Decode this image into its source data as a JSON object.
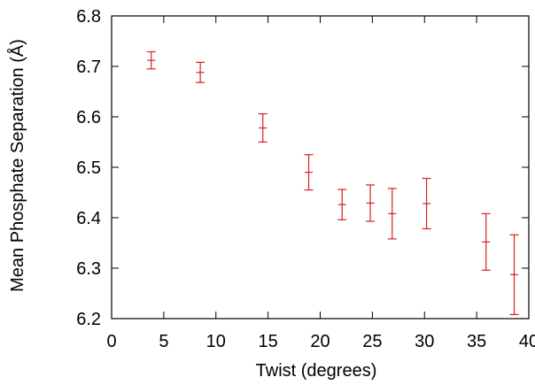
{
  "chart_data": {
    "type": "scatter",
    "title": "",
    "xlabel": "Twist (degrees)",
    "ylabel": "Mean Phosphate Separation (Å)",
    "xlim": [
      0,
      40
    ],
    "ylim": [
      6.2,
      6.8
    ],
    "xticks": [
      "0",
      "5",
      "10",
      "15",
      "20",
      "25",
      "30",
      "35",
      "40"
    ],
    "yticks": [
      "6.2",
      "6.3",
      "6.4",
      "6.5",
      "6.6",
      "6.7",
      "6.8"
    ],
    "grid": false,
    "legend": "none",
    "series": [
      {
        "color": "#d62020",
        "points": [
          {
            "x": 3.8,
            "y": 6.712,
            "err": 0.017
          },
          {
            "x": 8.5,
            "y": 6.688,
            "err": 0.02
          },
          {
            "x": 14.5,
            "y": 6.578,
            "err": 0.028
          },
          {
            "x": 18.9,
            "y": 6.49,
            "err": 0.035
          },
          {
            "x": 22.1,
            "y": 6.426,
            "err": 0.03
          },
          {
            "x": 24.8,
            "y": 6.429,
            "err": 0.036
          },
          {
            "x": 26.9,
            "y": 6.408,
            "err": 0.05
          },
          {
            "x": 30.2,
            "y": 6.428,
            "err": 0.05
          },
          {
            "x": 35.9,
            "y": 6.352,
            "err": 0.056
          },
          {
            "x": 38.6,
            "y": 6.287,
            "err": 0.079
          }
        ]
      }
    ]
  }
}
